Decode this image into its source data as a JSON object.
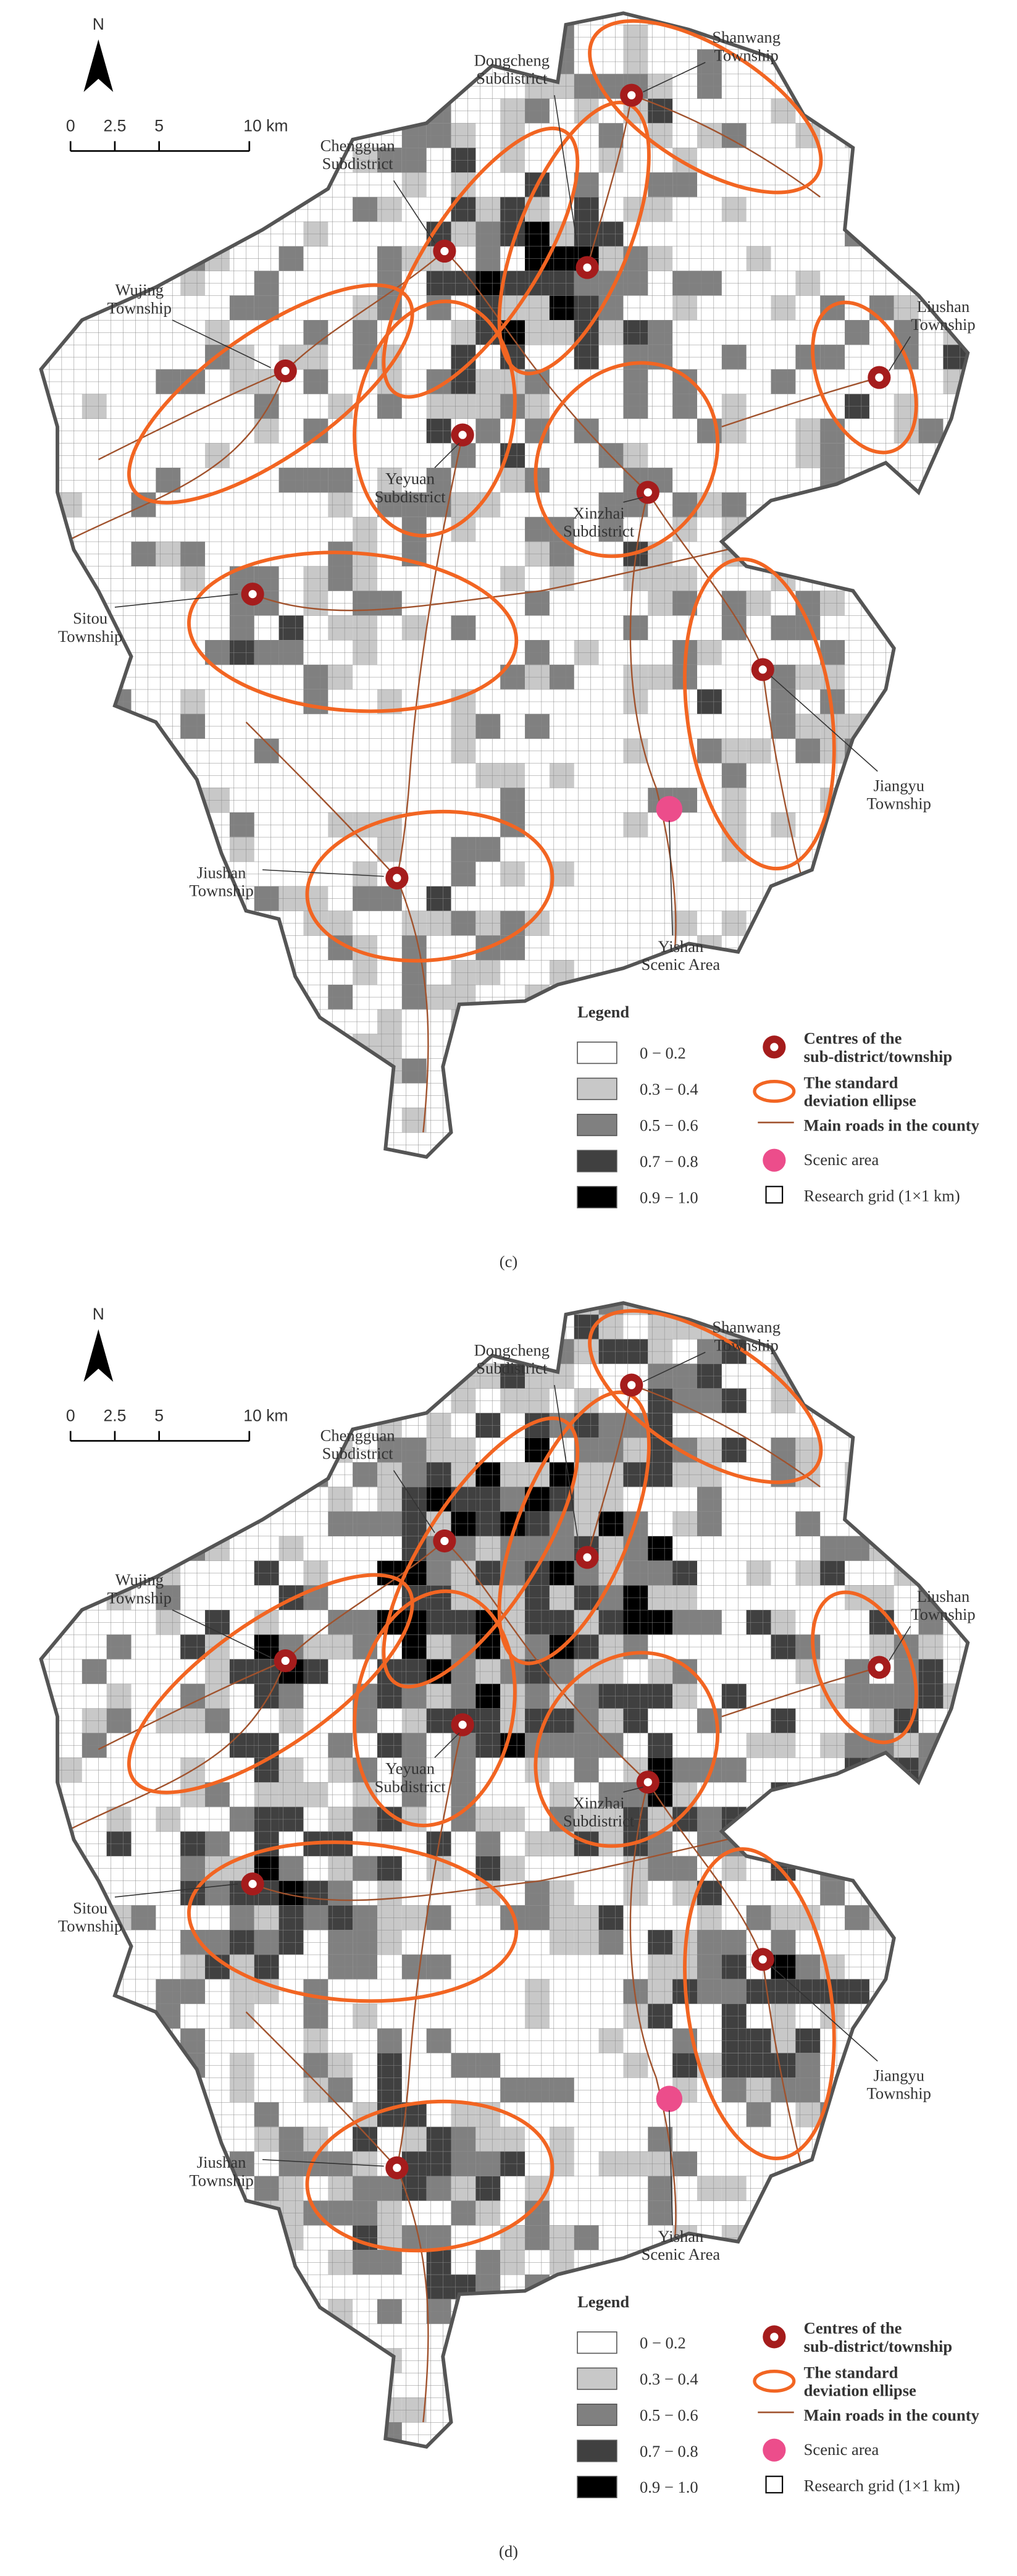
{
  "panels": [
    {
      "label": "(c)",
      "north": "N",
      "scale": [
        "0",
        "2.5",
        "5",
        "10 km"
      ],
      "places": [
        {
          "name": [
            "Shanwang",
            "Township"
          ]
        },
        {
          "name": [
            "Dongcheng",
            "Subdistrict"
          ]
        },
        {
          "name": [
            "Chengguan",
            "Subdistrict"
          ]
        },
        {
          "name": [
            "Wujing",
            "Township"
          ]
        },
        {
          "name": [
            "Liushan",
            "Township"
          ]
        },
        {
          "name": [
            "Yeyuan",
            "Subdistrict"
          ]
        },
        {
          "name": [
            "Xinzhai",
            "Subdistrict"
          ]
        },
        {
          "name": [
            "Sitou",
            "Township"
          ]
        },
        {
          "name": [
            "Jiangyu",
            "Township"
          ]
        },
        {
          "name": [
            "Jiushan",
            "Township"
          ]
        },
        {
          "name": [
            "Yishan",
            "Scenic Area"
          ]
        }
      ],
      "legend": {
        "title": "Legend",
        "classes": [
          "0 − 0.2",
          "0.3 − 0.4",
          "0.5 − 0.6",
          "0.7 − 0.8",
          "0.9 − 1.0"
        ],
        "items": [
          [
            "Centres of the",
            "sub-district/township"
          ],
          [
            "The standard",
            "deviation ellipse"
          ],
          [
            "Main roads in the county"
          ],
          [
            "Scenic area"
          ],
          [
            "Research grid (1×1 km)"
          ]
        ]
      }
    },
    {
      "label": "(d)",
      "north": "N",
      "scale": [
        "0",
        "2.5",
        "5",
        "10 km"
      ],
      "places": [
        {
          "name": [
            "Shanwang",
            "Township"
          ]
        },
        {
          "name": [
            "Dongcheng",
            "Subdistrict"
          ]
        },
        {
          "name": [
            "Chengguan",
            "Subdistrict"
          ]
        },
        {
          "name": [
            "Wujing",
            "Township"
          ]
        },
        {
          "name": [
            "Liushan",
            "Township"
          ]
        },
        {
          "name": [
            "Yeyuan",
            "Subdistrict"
          ]
        },
        {
          "name": [
            "Xinzhai",
            "Subdistrict"
          ]
        },
        {
          "name": [
            "Sitou",
            "Township"
          ]
        },
        {
          "name": [
            "Jiangyu",
            "Township"
          ]
        },
        {
          "name": [
            "Jiushan",
            "Township"
          ]
        },
        {
          "name": [
            "Yishan",
            "Scenic Area"
          ]
        }
      ],
      "legend": {
        "title": "Legend",
        "classes": [
          "0 − 0.2",
          "0.3 − 0.4",
          "0.5 − 0.6",
          "0.7 − 0.8",
          "0.9 − 1.0"
        ],
        "items": [
          [
            "Centres of the",
            "sub-district/township"
          ],
          [
            "The standard",
            "deviation ellipse"
          ],
          [
            "Main roads in the county"
          ],
          [
            "Scenic area"
          ],
          [
            "Research grid (1×1 km)"
          ]
        ]
      }
    }
  ]
}
